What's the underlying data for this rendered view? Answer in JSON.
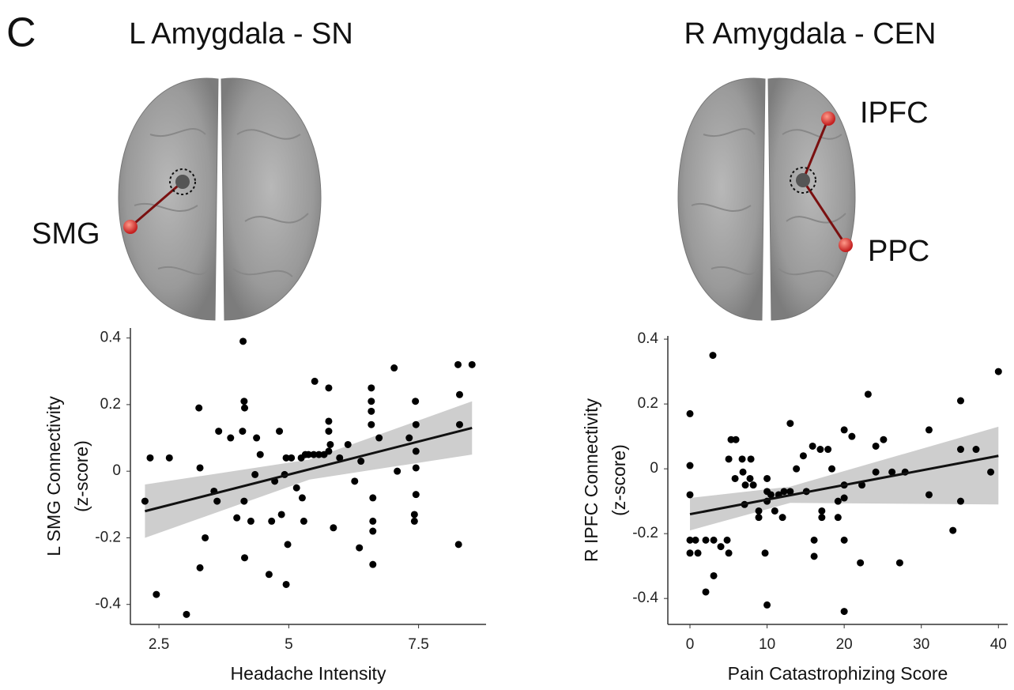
{
  "panel_label": "C",
  "chart_data": [
    {
      "type": "scatter",
      "title": "L Amygdala - SN",
      "annotations": [
        "SMG"
      ],
      "xlabel": "Headache Intensity",
      "ylabel": [
        "L SMG Connectivity",
        "(z-score)"
      ],
      "xlim": [
        1.95,
        8.8
      ],
      "ylim": [
        -0.46,
        0.43
      ],
      "xticks": [
        2.5,
        5,
        7.5
      ],
      "yticks": [
        0.4,
        0.2,
        0,
        -0.2,
        -0.4
      ],
      "color": "#000000",
      "x": [
        2.23,
        2.33,
        2.45,
        2.7,
        3.03,
        3.27,
        3.29,
        3.29,
        3.39,
        3.56,
        3.62,
        3.65,
        3.88,
        4.0,
        4.11,
        4.12,
        4.14,
        4.15,
        4.14,
        4.15,
        4.27,
        4.35,
        4.38,
        4.45,
        4.62,
        4.67,
        4.73,
        4.82,
        4.86,
        4.92,
        4.95,
        4.95,
        4.98,
        5.05,
        5.15,
        5.24,
        5.26,
        5.29,
        5.32,
        5.38,
        5.48,
        5.5,
        5.58,
        5.68,
        5.77,
        5.77,
        5.77,
        5.77,
        5.8,
        5.86,
        5.98,
        6.14,
        6.27,
        6.36,
        6.39,
        6.59,
        6.59,
        6.59,
        6.59,
        6.62,
        6.62,
        6.62,
        6.62,
        6.74,
        7.03,
        7.09,
        7.32,
        7.42,
        7.42,
        7.44,
        7.45,
        7.45,
        7.45,
        7.45,
        8.26,
        8.27,
        8.29,
        8.29,
        8.53
      ],
      "values": [
        -0.09,
        0.04,
        -0.37,
        0.04,
        -0.43,
        0.19,
        0.01,
        -0.29,
        -0.2,
        -0.06,
        -0.09,
        0.12,
        0.1,
        -0.14,
        0.12,
        0.39,
        0.21,
        0.19,
        -0.09,
        -0.26,
        -0.15,
        -0.01,
        0.1,
        0.05,
        -0.31,
        -0.15,
        -0.03,
        0.12,
        -0.13,
        -0.01,
        -0.34,
        0.04,
        -0.22,
        0.04,
        -0.05,
        0.04,
        -0.08,
        -0.15,
        0.05,
        0.05,
        0.05,
        0.27,
        0.05,
        0.05,
        0.25,
        0.06,
        0.15,
        0.12,
        0.08,
        -0.17,
        0.04,
        0.08,
        -0.03,
        -0.23,
        0.03,
        0.25,
        0.21,
        0.18,
        0.14,
        -0.08,
        -0.15,
        -0.18,
        -0.28,
        0.1,
        0.31,
        0.0,
        0.1,
        -0.13,
        -0.15,
        0.21,
        0.14,
        0.06,
        0.01,
        -0.07,
        0.32,
        -0.22,
        0.23,
        0.14,
        0.32
      ],
      "fit": {
        "x": [
          2.23,
          8.53
        ],
        "y": [
          -0.12,
          0.13
        ]
      },
      "ci": {
        "x": [
          2.23,
          5.4,
          8.53
        ],
        "lower": [
          -0.2,
          -0.025,
          0.05
        ],
        "upper": [
          -0.04,
          0.035,
          0.21
        ]
      }
    },
    {
      "type": "scatter",
      "title": "R Amygdala - CEN",
      "annotations": [
        "IPFC",
        "PPC"
      ],
      "xlabel": "Pain Catastrophizing Score",
      "ylabel": [
        "R IPFC Connectivity",
        "(z-score)"
      ],
      "xlim": [
        -2.87,
        41.2
      ],
      "ylim": [
        -0.48,
        0.41
      ],
      "xticks": [
        0,
        10,
        20,
        30,
        40
      ],
      "yticks": [
        0.4,
        0.2,
        0,
        -0.2,
        -0.4
      ],
      "color": "#000000",
      "x": [
        0,
        0,
        0,
        0,
        0,
        0.72,
        1.03,
        2.05,
        2.05,
        2.97,
        3.08,
        3.08,
        4.0,
        4.82,
        5.03,
        5.03,
        5.33,
        5.95,
        5.85,
        6.77,
        6.87,
        7.18,
        7.08,
        7.9,
        7.79,
        8.21,
        8.92,
        8.92,
        10,
        9.74,
        10,
        10,
        10,
        10.5,
        11.0,
        11.5,
        12.0,
        12.2,
        13.0,
        13.0,
        13.8,
        14.7,
        15.1,
        15.9,
        16.1,
        16.1,
        17.1,
        17.1,
        16.9,
        17.9,
        18.4,
        19.2,
        19.2,
        20,
        20,
        20,
        20,
        20,
        21.0,
        22.1,
        22.3,
        23.1,
        24.1,
        24.1,
        25.1,
        26.2,
        27.2,
        27.9,
        31.0,
        31.0,
        34.1,
        35.1,
        35.1,
        35.1,
        37.1,
        39.0,
        40.0
      ],
      "values": [
        0.17,
        0.01,
        -0.08,
        -0.22,
        -0.26,
        -0.22,
        -0.26,
        -0.22,
        -0.38,
        0.35,
        -0.22,
        -0.33,
        -0.24,
        -0.22,
        -0.26,
        0.03,
        0.09,
        0.09,
        -0.03,
        0.03,
        -0.01,
        -0.05,
        -0.11,
        0.03,
        -0.03,
        -0.05,
        -0.13,
        -0.15,
        -0.03,
        -0.26,
        -0.42,
        -0.07,
        -0.1,
        -0.08,
        -0.13,
        -0.08,
        -0.15,
        -0.07,
        0.14,
        -0.07,
        0.0,
        0.04,
        -0.07,
        0.07,
        -0.22,
        -0.27,
        -0.15,
        -0.13,
        0.06,
        0.06,
        0.0,
        -0.1,
        -0.15,
        0.12,
        -0.05,
        -0.09,
        -0.22,
        -0.44,
        0.1,
        -0.29,
        -0.05,
        0.23,
        0.07,
        -0.01,
        0.09,
        -0.01,
        -0.29,
        -0.01,
        0.12,
        -0.08,
        -0.19,
        0.21,
        0.06,
        -0.1,
        0.06,
        -0.01,
        0.3
      ],
      "fit": {
        "x": [
          0,
          40
        ],
        "y": [
          -0.14,
          0.04
        ]
      },
      "ci": {
        "x": [
          0,
          13,
          40
        ],
        "lower": [
          -0.19,
          -0.105,
          -0.11
        ],
        "upper": [
          -0.09,
          -0.055,
          0.13
        ]
      }
    }
  ]
}
